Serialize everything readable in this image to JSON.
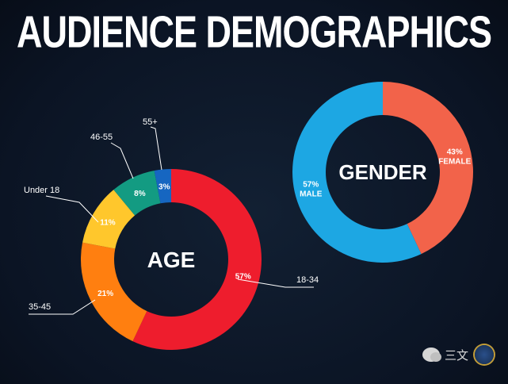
{
  "title": "AUDIENCE DEMOGRAPHICS",
  "watermark": {
    "text": "三文"
  },
  "colors": {
    "background": "#0b1424",
    "age_18_34": "#ee1d2d",
    "age_35_45": "#ff7f10",
    "age_under_18": "#ffc72c",
    "age_46_55": "#139b82",
    "age_55_plus": "#1666c1",
    "male": "#1da7e3",
    "female": "#f2634a"
  },
  "chart_data": [
    {
      "type": "pie",
      "center_label": "AGE",
      "slices": [
        {
          "label": "18-34",
          "value": 57,
          "value_label": "57%",
          "color": "#ee1d2d"
        },
        {
          "label": "35-45",
          "value": 21,
          "value_label": "21%",
          "color": "#ff7f10"
        },
        {
          "label": "Under 18",
          "value": 11,
          "value_label": "11%",
          "color": "#ffc72c"
        },
        {
          "label": "46-55",
          "value": 8,
          "value_label": "8%",
          "color": "#139b82"
        },
        {
          "label": "55+",
          "value": 3,
          "value_label": "3%",
          "color": "#1666c1"
        }
      ]
    },
    {
      "type": "pie",
      "center_label": "GENDER",
      "slices": [
        {
          "label": "FEMALE",
          "value": 43,
          "value_label": "43%",
          "color": "#f2634a"
        },
        {
          "label": "MALE",
          "value": 57,
          "value_label": "57%",
          "color": "#1da7e3"
        }
      ]
    }
  ]
}
